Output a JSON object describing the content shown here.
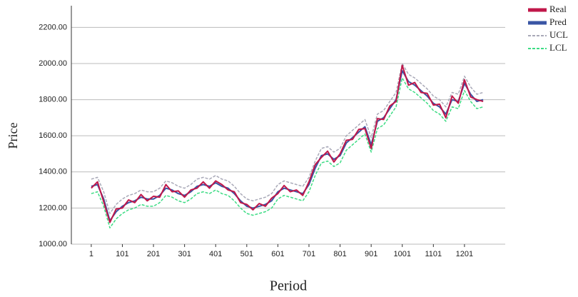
{
  "chart_data": {
    "type": "line",
    "x_label": "Period",
    "y_label": "Price",
    "x": [
      1,
      21,
      41,
      61,
      81,
      101,
      121,
      141,
      161,
      181,
      201,
      221,
      241,
      261,
      281,
      301,
      321,
      341,
      361,
      381,
      401,
      421,
      441,
      461,
      481,
      501,
      521,
      541,
      561,
      581,
      601,
      621,
      641,
      661,
      681,
      701,
      721,
      741,
      761,
      781,
      801,
      821,
      841,
      861,
      881,
      901,
      921,
      941,
      961,
      981,
      1001,
      1021,
      1041,
      1061,
      1081,
      1101,
      1121,
      1141,
      1161,
      1181,
      1201,
      1221,
      1241,
      1261
    ],
    "series": [
      {
        "name": "Real",
        "color": "#c0174a",
        "dashed": false,
        "values": [
          1310,
          1345,
          1235,
          1120,
          1195,
          1200,
          1245,
          1230,
          1275,
          1240,
          1265,
          1260,
          1330,
          1290,
          1295,
          1260,
          1300,
          1310,
          1345,
          1310,
          1350,
          1330,
          1300,
          1290,
          1230,
          1220,
          1190,
          1225,
          1210,
          1255,
          1280,
          1325,
          1290,
          1300,
          1270,
          1345,
          1440,
          1480,
          1515,
          1455,
          1500,
          1575,
          1580,
          1635,
          1640,
          1530,
          1695,
          1690,
          1765,
          1790,
          1990,
          1880,
          1895,
          1840,
          1835,
          1770,
          1775,
          1700,
          1820,
          1780,
          1910,
          1815,
          1800,
          1790
        ]
      },
      {
        "name": "Pred",
        "color": "#3a55a4",
        "dashed": false,
        "values": [
          1320,
          1330,
          1250,
          1130,
          1180,
          1210,
          1230,
          1240,
          1260,
          1250,
          1250,
          1270,
          1310,
          1300,
          1280,
          1270,
          1290,
          1320,
          1330,
          1320,
          1340,
          1320,
          1310,
          1280,
          1240,
          1210,
          1200,
          1210,
          1220,
          1240,
          1290,
          1310,
          1300,
          1290,
          1280,
          1330,
          1420,
          1490,
          1500,
          1470,
          1490,
          1560,
          1590,
          1620,
          1650,
          1550,
          1680,
          1700,
          1750,
          1800,
          1960,
          1900,
          1880,
          1850,
          1820,
          1780,
          1760,
          1720,
          1800,
          1790,
          1890,
          1830,
          1790,
          1800
        ]
      },
      {
        "name": "UCL",
        "color": "#a9a9b8",
        "dashed": true,
        "values": [
          1360,
          1370,
          1290,
          1170,
          1220,
          1250,
          1270,
          1280,
          1300,
          1290,
          1290,
          1310,
          1350,
          1340,
          1320,
          1310,
          1330,
          1360,
          1370,
          1360,
          1380,
          1360,
          1350,
          1320,
          1280,
          1250,
          1240,
          1250,
          1260,
          1280,
          1330,
          1350,
          1340,
          1330,
          1320,
          1370,
          1460,
          1530,
          1540,
          1510,
          1530,
          1600,
          1630,
          1660,
          1690,
          1590,
          1720,
          1740,
          1790,
          1840,
          2000,
          1940,
          1920,
          1890,
          1860,
          1820,
          1800,
          1760,
          1840,
          1830,
          1930,
          1870,
          1830,
          1840
        ]
      },
      {
        "name": "LCL",
        "color": "#3ddc84",
        "dashed": true,
        "values": [
          1280,
          1290,
          1210,
          1090,
          1140,
          1170,
          1190,
          1200,
          1220,
          1210,
          1210,
          1230,
          1270,
          1260,
          1240,
          1230,
          1250,
          1280,
          1290,
          1280,
          1300,
          1280,
          1270,
          1240,
          1200,
          1170,
          1160,
          1170,
          1180,
          1200,
          1250,
          1270,
          1260,
          1250,
          1240,
          1290,
          1380,
          1450,
          1460,
          1430,
          1450,
          1520,
          1550,
          1580,
          1610,
          1510,
          1640,
          1660,
          1710,
          1760,
          1920,
          1860,
          1840,
          1810,
          1780,
          1740,
          1720,
          1680,
          1760,
          1750,
          1850,
          1790,
          1750,
          1760
        ]
      }
    ],
    "xlim": [
      -63,
      1332
    ],
    "xticks": [
      1,
      101,
      201,
      301,
      401,
      501,
      601,
      701,
      801,
      901,
      1001,
      1101,
      1201
    ],
    "ylim": [
      1000,
      2320
    ],
    "yticks": [
      {
        "value": 1000,
        "label": "1000.00"
      },
      {
        "value": 1200,
        "label": "1200.00"
      },
      {
        "value": 1400,
        "label": "1400.00"
      },
      {
        "value": 1600,
        "label": "1600.00"
      },
      {
        "value": 1800,
        "label": "1800.00"
      },
      {
        "value": 2000,
        "label": "2000.00"
      },
      {
        "value": 2200,
        "label": "2200.00"
      }
    ],
    "grid": true,
    "legend": "top-right"
  }
}
